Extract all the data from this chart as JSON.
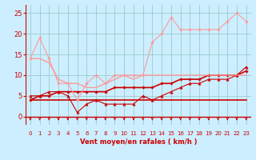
{
  "background_color": "#cceeff",
  "grid_color": "#99cccc",
  "line_color_dark": "#cc0000",
  "line_color_light": "#ff9999",
  "xlabel": "Vent moyen/en rafales ( km/h )",
  "ylim": [
    -2,
    27
  ],
  "xlim": [
    -0.5,
    23.5
  ],
  "yticks": [
    0,
    5,
    10,
    15,
    20,
    25
  ],
  "xticks": [
    0,
    1,
    2,
    3,
    4,
    5,
    6,
    7,
    8,
    9,
    10,
    11,
    12,
    13,
    14,
    15,
    16,
    17,
    18,
    19,
    20,
    21,
    22,
    23
  ],
  "x": [
    0,
    1,
    2,
    3,
    4,
    5,
    6,
    7,
    8,
    9,
    10,
    11,
    12,
    13,
    14,
    15,
    16,
    17,
    18,
    19,
    20,
    21,
    22,
    23
  ],
  "series": [
    {
      "y": [
        4,
        4,
        4,
        4,
        4,
        4,
        4,
        4,
        4,
        4,
        4,
        4,
        4,
        4,
        4,
        4,
        4,
        4,
        4,
        4,
        4,
        4,
        4,
        4
      ],
      "color": "#cc0000",
      "lw": 1.2,
      "marker": null
    },
    {
      "y": [
        4,
        5,
        5,
        6,
        6,
        6,
        6,
        6,
        6,
        7,
        7,
        7,
        7,
        7,
        8,
        8,
        9,
        9,
        9,
        10,
        10,
        10,
        10,
        11
      ],
      "color": "#cc0000",
      "lw": 1.2,
      "marker": "D",
      "ms": 1.8
    },
    {
      "y": [
        5,
        5,
        6,
        6,
        5,
        1,
        3,
        4,
        3,
        3,
        3,
        3,
        5,
        4,
        5,
        6,
        7,
        8,
        8,
        9,
        9,
        9,
        10,
        12
      ],
      "color": "#cc0000",
      "lw": 0.8,
      "marker": "^",
      "ms": 2.5
    },
    {
      "y": [
        14,
        14,
        13,
        9,
        8,
        8,
        7,
        7,
        8,
        9,
        10,
        9,
        10,
        10,
        10,
        10,
        10,
        10,
        10,
        10,
        10,
        10,
        10,
        10
      ],
      "color": "#ff9999",
      "lw": 1.0,
      "marker": null
    },
    {
      "y": [
        14,
        19,
        14,
        8,
        8,
        4,
        8,
        10,
        8,
        10,
        10,
        10,
        10,
        18,
        20,
        24,
        21,
        21,
        21,
        21,
        21,
        23,
        25,
        23
      ],
      "color": "#ff9999",
      "lw": 0.8,
      "marker": "D",
      "ms": 1.8
    }
  ],
  "arrow_color": "#cc0000",
  "xlabel_fontsize": 6.0,
  "ytick_fontsize": 6.0,
  "xtick_fontsize": 5.0
}
